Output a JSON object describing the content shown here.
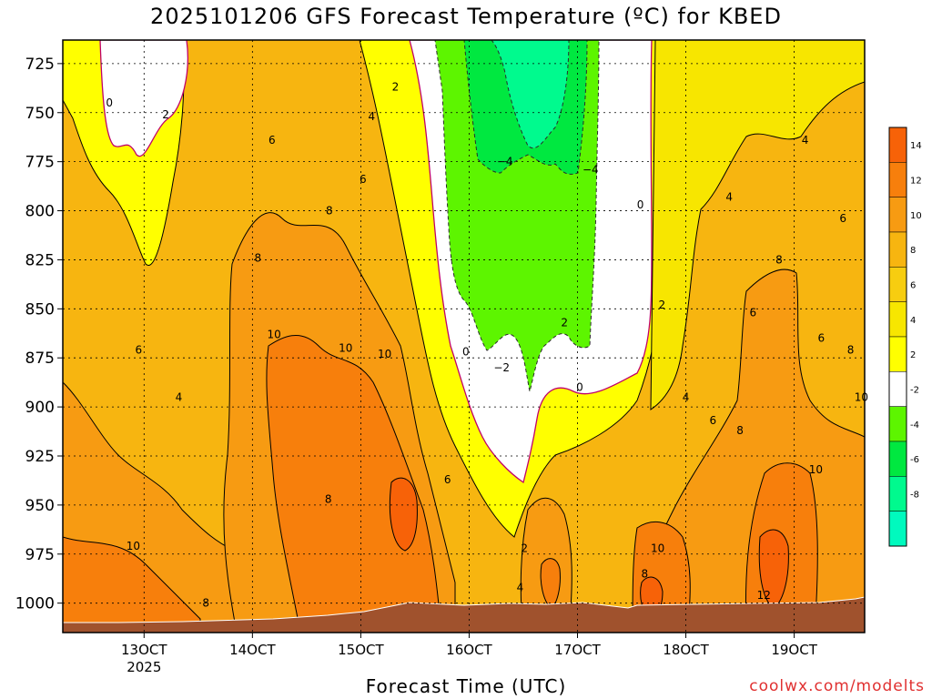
{
  "title": "2025101206 GFS Forecast Temperature (ºC) for KBED",
  "xlabel": "Forecast Time (UTC)",
  "credit": "coolwx.com/modelts",
  "chart_data": {
    "type": "heatmap",
    "title": "2025101206 GFS Forecast Temperature (ºC) for KBED",
    "xlabel": "Forecast Time (UTC)",
    "ylabel": "",
    "y_axis": "pressure (hPa), reversed",
    "ylim": [
      1015,
      713
    ],
    "y_ticks": [
      725,
      750,
      775,
      800,
      825,
      850,
      875,
      900,
      925,
      950,
      975,
      1000
    ],
    "x_ticks": [
      "13OCT",
      "14OCT",
      "15OCT",
      "16OCT",
      "17OCT",
      "18OCT",
      "19OCT"
    ],
    "x_tick_sub": "2025",
    "grid": true,
    "colorbar_ticks": [
      14,
      12,
      10,
      8,
      6,
      4,
      2,
      -2,
      -4,
      -6,
      -8
    ],
    "colorbar_colors": [
      "#f76208",
      "#f77f0c",
      "#f79b12",
      "#f7b510",
      "#f7cd10",
      "#f7e600",
      "#ffff00",
      "#ffffff",
      "#5df500",
      "#00e840",
      "#00fa8e",
      "#00fabe"
    ],
    "contour_labels": [
      {
        "day": 12.68,
        "p": 745,
        "label": "0"
      },
      {
        "day": 13.2,
        "p": 751,
        "label": "2"
      },
      {
        "day": 12.95,
        "p": 871,
        "label": "6"
      },
      {
        "day": 13.32,
        "p": 895,
        "label": "4"
      },
      {
        "day": 12.9,
        "p": 971,
        "label": "10"
      },
      {
        "day": 13.57,
        "p": 1000,
        "label": "8"
      },
      {
        "day": 14.05,
        "p": 824,
        "label": "8"
      },
      {
        "day": 14.18,
        "p": 764,
        "label": "6"
      },
      {
        "day": 14.2,
        "p": 863,
        "label": "10"
      },
      {
        "day": 14.7,
        "p": 947,
        "label": "8"
      },
      {
        "day": 14.71,
        "p": 800,
        "label": "8"
      },
      {
        "day": 15.02,
        "p": 784,
        "label": "6"
      },
      {
        "day": 15.1,
        "p": 752,
        "label": "4"
      },
      {
        "day": 14.86,
        "p": 870,
        "label": "10"
      },
      {
        "day": 15.22,
        "p": 873,
        "label": "10"
      },
      {
        "day": 15.32,
        "p": 737,
        "label": "2"
      },
      {
        "day": 15.8,
        "p": 937,
        "label": "6"
      },
      {
        "day": 15.97,
        "p": 872,
        "label": "0"
      },
      {
        "day": 16.3,
        "p": 880,
        "label": "−2"
      },
      {
        "day": 16.33,
        "p": 775,
        "label": "−4"
      },
      {
        "day": 16.51,
        "p": 972,
        "label": "2"
      },
      {
        "day": 16.47,
        "p": 992,
        "label": "4"
      },
      {
        "day": 16.88,
        "p": 857,
        "label": "2"
      },
      {
        "day": 17.02,
        "p": 890,
        "label": "0"
      },
      {
        "day": 17.12,
        "p": 779,
        "label": "−4"
      },
      {
        "day": 17.58,
        "p": 797,
        "label": "0"
      },
      {
        "day": 17.78,
        "p": 848,
        "label": "2"
      },
      {
        "day": 17.62,
        "p": 985,
        "label": "8"
      },
      {
        "day": 17.74,
        "p": 972,
        "label": "10"
      },
      {
        "day": 18.0,
        "p": 895,
        "label": "4"
      },
      {
        "day": 18.25,
        "p": 907,
        "label": "6"
      },
      {
        "day": 18.4,
        "p": 793,
        "label": "4"
      },
      {
        "day": 18.5,
        "p": 912,
        "label": "8"
      },
      {
        "day": 18.62,
        "p": 852,
        "label": "6"
      },
      {
        "day": 18.86,
        "p": 825,
        "label": "8"
      },
      {
        "day": 18.72,
        "p": 996,
        "label": "12"
      },
      {
        "day": 19.2,
        "p": 932,
        "label": "10"
      },
      {
        "day": 19.1,
        "p": 764,
        "label": "4"
      },
      {
        "day": 19.25,
        "p": 865,
        "label": "6"
      },
      {
        "day": 19.45,
        "p": 804,
        "label": "6"
      },
      {
        "day": 19.52,
        "p": 871,
        "label": "8"
      },
      {
        "day": 19.62,
        "p": 895,
        "label": "10"
      }
    ]
  }
}
